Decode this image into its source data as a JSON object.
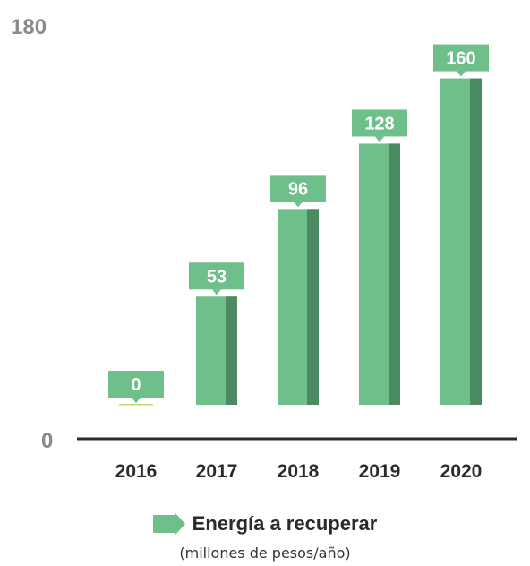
{
  "chart_data": {
    "type": "bar",
    "categories": [
      "2016",
      "2017",
      "2018",
      "2019",
      "2020"
    ],
    "values": [
      0,
      53,
      96,
      128,
      160
    ],
    "ylim": [
      0,
      180
    ],
    "y_axis_labels": [
      "180",
      "0"
    ],
    "legend": {
      "label": "Energía a recuperar",
      "sublabel": "(millones de pesos/año)",
      "position": "bottom"
    },
    "grid": false,
    "colors": {
      "bar": "#6fbf8a",
      "bar_shade": "#4b8a62",
      "label_box": "#6fbf8a",
      "baseline": "#2a2a2a"
    }
  }
}
